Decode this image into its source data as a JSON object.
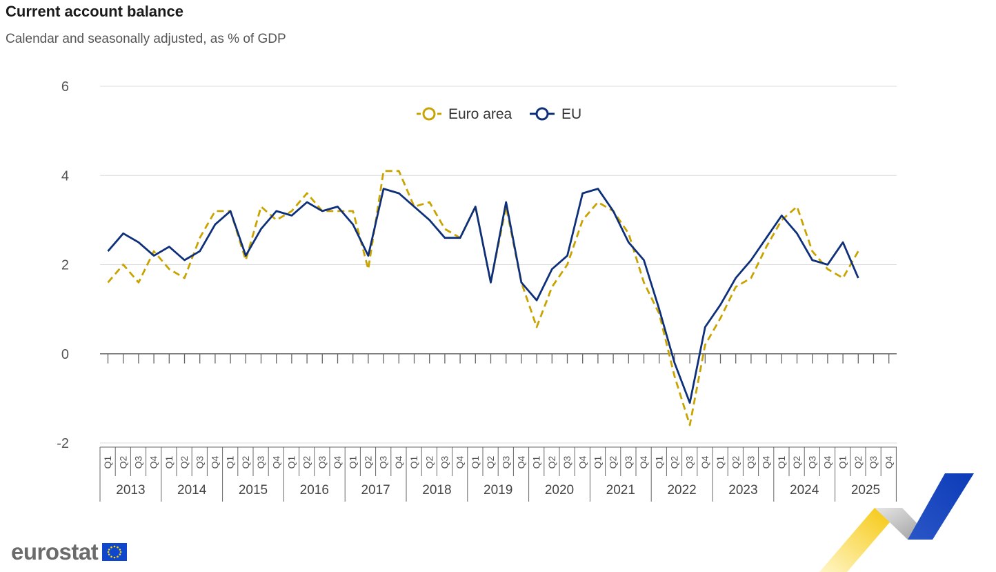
{
  "title": "Current account balance",
  "subtitle": "Calendar and seasonally adjusted, as % of GDP",
  "logo": {
    "text": "eurostat",
    "flag": "eu-flag-icon"
  },
  "colors": {
    "euro_area": "#c9a400",
    "eu": "#0e2f7a",
    "grid": "#dcdcdc",
    "axis": "#666666"
  },
  "chart_data": {
    "type": "line",
    "ylim": [
      -2,
      6
    ],
    "yticks": [
      "-2",
      "0",
      "2",
      "4",
      "6"
    ],
    "quarters": [
      "Q1",
      "Q2",
      "Q3",
      "Q4"
    ],
    "years": [
      "2013",
      "2014",
      "2015",
      "2016",
      "2017",
      "2018",
      "2019",
      "2020",
      "2021",
      "2022",
      "2023",
      "2024",
      "2025"
    ],
    "legend_position": "top-center",
    "series": [
      {
        "name": "Euro area",
        "style": "dashed",
        "values": [
          1.6,
          2.0,
          1.6,
          2.3,
          1.9,
          1.7,
          2.6,
          3.2,
          3.2,
          2.1,
          3.3,
          3.0,
          3.2,
          3.6,
          3.2,
          3.2,
          3.2,
          1.9,
          4.1,
          4.1,
          3.3,
          3.4,
          2.8,
          2.6,
          3.3,
          1.6,
          3.3,
          1.6,
          0.6,
          1.5,
          2.0,
          3.0,
          3.4,
          3.2,
          2.7,
          1.6,
          0.9,
          -0.5,
          -1.6,
          0.2,
          0.8,
          1.5,
          1.7,
          2.4,
          3.0,
          3.3,
          2.3,
          1.9,
          1.7,
          2.3
        ]
      },
      {
        "name": "EU",
        "style": "solid",
        "values": [
          2.3,
          2.7,
          2.5,
          2.2,
          2.4,
          2.1,
          2.3,
          2.9,
          3.2,
          2.2,
          2.8,
          3.2,
          3.1,
          3.4,
          3.2,
          3.3,
          2.9,
          2.2,
          3.7,
          3.6,
          3.3,
          3.0,
          2.6,
          2.6,
          3.3,
          1.6,
          3.4,
          1.6,
          1.2,
          1.9,
          2.2,
          3.6,
          3.7,
          3.2,
          2.5,
          2.1,
          1.0,
          -0.2,
          -1.1,
          0.6,
          1.1,
          1.7,
          2.1,
          2.6,
          3.1,
          2.7,
          2.1,
          2.0,
          2.5,
          1.7
        ]
      }
    ]
  }
}
